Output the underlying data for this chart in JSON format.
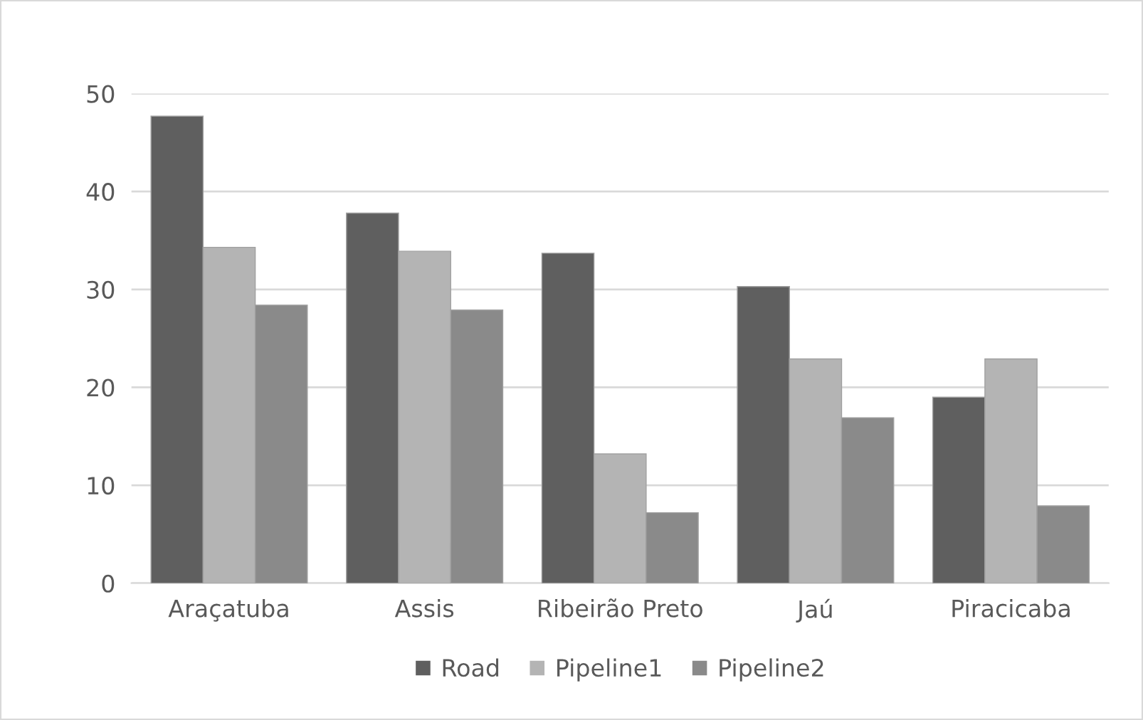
{
  "chart_data": {
    "type": "bar",
    "categories": [
      "Araçatuba",
      "Assis",
      "Ribeirão Preto",
      "Jaú",
      "Piracicaba"
    ],
    "series": [
      {
        "name": "Road",
        "color": "#5f5f5f",
        "values": [
          47.7,
          37.8,
          33.7,
          30.3,
          19.0
        ]
      },
      {
        "name": "Pipeline1",
        "color": "#b4b4b4",
        "values": [
          34.3,
          33.9,
          13.2,
          22.9,
          22.9
        ]
      },
      {
        "name": "Pipeline2",
        "color": "#8a8a8a",
        "values": [
          28.4,
          27.9,
          7.2,
          16.9,
          7.9
        ]
      }
    ],
    "ylim": [
      0,
      50
    ],
    "yticks": [
      0,
      10,
      20,
      30,
      40,
      50
    ],
    "grid": "y",
    "legend": "bottom"
  }
}
